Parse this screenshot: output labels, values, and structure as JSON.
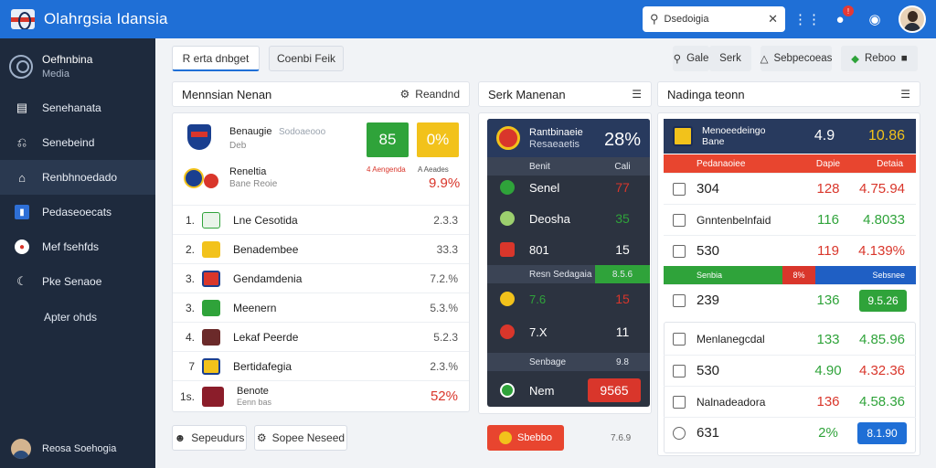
{
  "app": {
    "title": "Olahrgsia Idansia"
  },
  "search": {
    "value": "Dsedoigia"
  },
  "sidebar": {
    "profile": {
      "name": "Oefhnbina",
      "sub": "Media"
    },
    "items": [
      {
        "label": "Senehanata"
      },
      {
        "label": "Senebeind"
      },
      {
        "label": "Renbhnoedado"
      },
      {
        "label": "Pedaseoecats"
      },
      {
        "label": "Mef fsehfds"
      },
      {
        "label": "Pke Senaoe"
      }
    ],
    "sub_item": "Apter ohds",
    "user": "Reosa Soehogia"
  },
  "toolbar": {
    "tab1": "R erta dnbget",
    "tab2": "Coenbi Feik",
    "tool1": "Gale",
    "tool2": "Serk",
    "tool3": "Sebpecoeas",
    "tool4": "Reboo"
  },
  "left_panel": {
    "title": "Mennsian Nenan",
    "right_label": "Reandnd",
    "match1": {
      "name": "Benaugie",
      "sub": "Deb",
      "extra": "Sodoaeooo"
    },
    "match2": {
      "name": "Reneltia",
      "sub": "Bane Reoie"
    },
    "score_green": "85",
    "score_yellow": "0%",
    "label_green": "4 Aengenda",
    "label_yellow": "A Aeades",
    "big_value": "9.9%",
    "rows": [
      {
        "num": "1.",
        "name": "Lne Cesotida",
        "value": "2.3.3"
      },
      {
        "num": "2.",
        "name": "Benadembee",
        "value": "33.3"
      },
      {
        "num": "3.",
        "name": "Gendamdenia",
        "value": "7.2.%"
      },
      {
        "num": "3.",
        "name": "Meenern",
        "value": "5.3.%"
      },
      {
        "num": "4.",
        "name": "Lekaf Peerde",
        "value": "5.2.3"
      },
      {
        "num": "7",
        "name": "Bertidafegia",
        "value": "2.3.%"
      },
      {
        "num": "1s.",
        "name": "Benote",
        "value": "52%",
        "sub": "Eenn bas"
      }
    ],
    "btn1": "Sepeudurs",
    "btn2": "Sopee Neseed"
  },
  "mid_panel": {
    "title": "Serk Manenan",
    "head": {
      "name": "Rantbinaeie",
      "sub": "Resaeaetis",
      "score": "28%"
    },
    "strip1": {
      "a": "Benit",
      "b": "Cali"
    },
    "rows": [
      {
        "name": "Senel",
        "value": "77"
      },
      {
        "name": "Deosha",
        "value": "35"
      },
      {
        "name": "801",
        "value": "15"
      }
    ],
    "strip2": {
      "label": "Resn Sedagaia",
      "value": "8.5.6"
    },
    "rows2": [
      {
        "name": "7.6",
        "value": "15"
      },
      {
        "name": "7.X",
        "value": "11"
      }
    ],
    "strip3": {
      "a": "Senbage",
      "b": "9.8"
    },
    "last": {
      "name": "Nem",
      "value": "9565"
    },
    "btn": "Sbebbo",
    "btn_value": "7.6.9"
  },
  "right_panel": {
    "title": "Nadinga teonn",
    "head": {
      "name": "Menoeedeingo",
      "sub": "Bane",
      "score": "4.9",
      "score2": "10.86"
    },
    "strip_red": {
      "a": "Pedanaoiee",
      "b": "Dapie",
      "c": "Detaia"
    },
    "rows": [
      {
        "name": "304",
        "a": "128",
        "b": "4.75.94"
      },
      {
        "name": "Gnntenbelnfaid",
        "a": "116",
        "b": "4.8033"
      },
      {
        "name": "530",
        "a": "119",
        "b": "4.139%"
      }
    ],
    "strip_multi": {
      "a": "Senbia",
      "b": "8%",
      "c": "Sebsnee"
    },
    "row_after": {
      "name": "239",
      "a": "136",
      "b": "9.5.26"
    },
    "rows2": [
      {
        "name": "Menlanegcdal",
        "a": "133",
        "b": "4.85.96"
      },
      {
        "name": "530",
        "a": "4.90",
        "b": "4.32.36"
      },
      {
        "name": "Nalnadeadora",
        "a": "136",
        "b": "4.58.36"
      },
      {
        "name": "631",
        "a": "2%",
        "b": "8.1.90"
      }
    ]
  },
  "colors": {
    "topbar": "#1f6fd6",
    "sidebar": "#1e2a3d",
    "green": "#2fa33a",
    "red": "#d9362b",
    "yellow": "#f2c21b"
  }
}
